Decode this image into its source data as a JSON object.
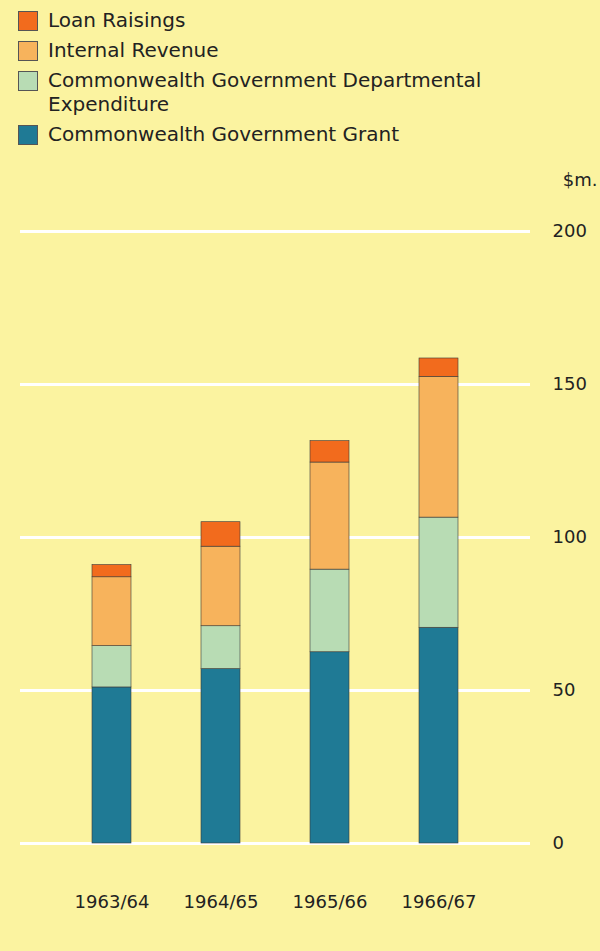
{
  "chart_data": {
    "type": "bar",
    "stacked": true,
    "grid": true,
    "legend": "top",
    "y_label": "$m.",
    "categories": [
      "1963/64",
      "1964/65",
      "1965/66",
      "1966/67"
    ],
    "series": [
      {
        "name": "Commonwealth Government Grant",
        "color": "#1f7a95",
        "values": [
          51,
          57,
          62.5,
          70.5
        ]
      },
      {
        "name": "Commonwealth Government Departmental Expenditure",
        "color": "#b8dcb4",
        "values": [
          13.5,
          14,
          27,
          36
        ]
      },
      {
        "name": "Internal Revenue",
        "color": "#f7b35c",
        "values": [
          22.5,
          26,
          35,
          46
        ]
      },
      {
        "name": "Loan Raisings",
        "color": "#f26b1d",
        "values": [
          4,
          8,
          7,
          6
        ]
      }
    ],
    "ylim": [
      0,
      200
    ],
    "yticks": [
      0,
      50,
      100,
      150,
      200
    ]
  }
}
